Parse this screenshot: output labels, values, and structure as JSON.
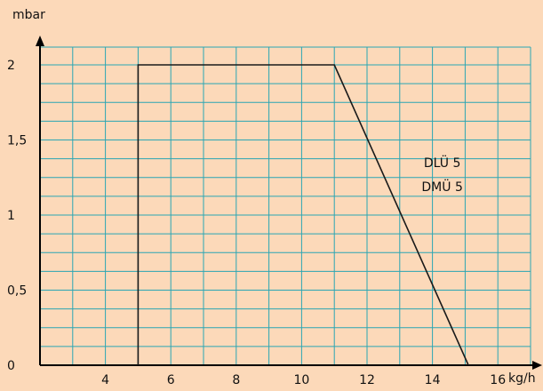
{
  "colors": {
    "background": "#fcd9b9",
    "grid": "#2aa6b4",
    "line": "#1a1a1a",
    "axis": "#000000"
  },
  "chart_data": {
    "type": "line",
    "ylabel": "mbar",
    "xlabel": "kg/h",
    "xlim": [
      2,
      17
    ],
    "ylim": [
      0,
      2
    ],
    "grid": true,
    "x_ticks": [
      {
        "value": 4,
        "label": "4"
      },
      {
        "value": 6,
        "label": "6"
      },
      {
        "value": 8,
        "label": "8"
      },
      {
        "value": 10,
        "label": "10"
      },
      {
        "value": 12,
        "label": "12"
      },
      {
        "value": 14,
        "label": "14"
      },
      {
        "value": 16,
        "label": "16"
      }
    ],
    "y_ticks": [
      {
        "value": 0,
        "label": "0"
      },
      {
        "value": 0.5,
        "label": "0,5"
      },
      {
        "value": 1,
        "label": "1"
      },
      {
        "value": 1.5,
        "label": "1,5"
      },
      {
        "value": 2,
        "label": "2"
      }
    ],
    "series": [
      {
        "x": [
          5,
          5,
          11,
          15.1
        ],
        "y": [
          0,
          2,
          2,
          0
        ]
      }
    ],
    "annotations": [
      {
        "text": "DLÜ 5",
        "x": 14.3,
        "y": 1.32
      },
      {
        "text": "DMÜ 5",
        "x": 14.3,
        "y": 1.16
      }
    ]
  }
}
